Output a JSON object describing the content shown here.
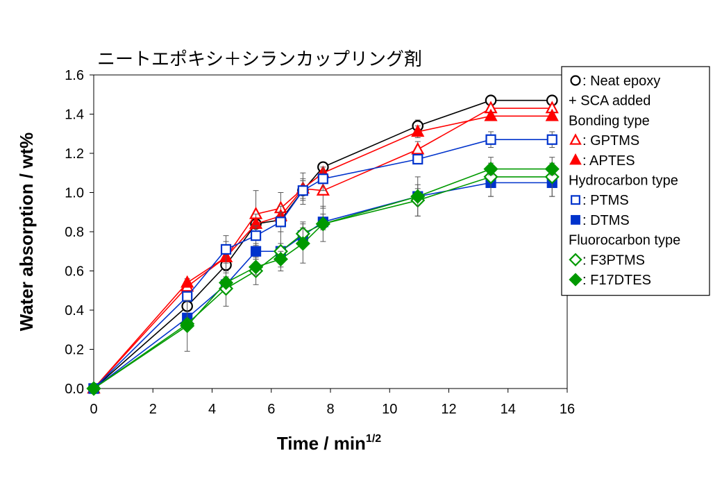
{
  "chart_data": {
    "type": "line",
    "title": "ニートエポキシ＋シランカップリング剤",
    "xlabel": "Time / min",
    "xlabel_sup": "1/2",
    "ylabel": "Water absorption / wt%",
    "xlim": [
      0,
      16
    ],
    "ylim": [
      0,
      1.6
    ],
    "xticks": [
      0,
      2,
      4,
      6,
      8,
      10,
      12,
      14,
      16
    ],
    "yticks": [
      0.0,
      0.2,
      0.4,
      0.6,
      0.8,
      1.0,
      1.2,
      1.4,
      1.6
    ],
    "ytick_labels": [
      "0.0",
      "0.2",
      "0.4",
      "0.6",
      "0.8",
      "1.0",
      "1.2",
      "1.4",
      "1.6"
    ],
    "xtick_labels": [
      "0",
      "2",
      "4",
      "6",
      "8",
      "10",
      "12",
      "14",
      "16"
    ],
    "grid": false,
    "legend_position": "top-right",
    "x": [
      0,
      3.16,
      4.47,
      5.48,
      6.32,
      7.07,
      7.75,
      10.95,
      13.42,
      15.49
    ],
    "series": [
      {
        "name": "Neat epoxy",
        "marker": "circle",
        "filled": false,
        "color": "#000000",
        "values": [
          0,
          0.42,
          0.63,
          0.84,
          0.86,
          1.01,
          1.13,
          1.34,
          1.47,
          1.47
        ],
        "errors": [
          0,
          0,
          0,
          0,
          0,
          0,
          0,
          0.03,
          0,
          0
        ]
      },
      {
        "name": "GPTMS",
        "marker": "triangle",
        "filled": false,
        "color": "#ff0000",
        "values": [
          0,
          0.52,
          0.67,
          0.89,
          0.92,
          1.02,
          1.01,
          1.22,
          1.43,
          1.43
        ],
        "errors": [
          0,
          0,
          0.08,
          0.12,
          0.08,
          0.08,
          0.09,
          0.04,
          0.02,
          0.02
        ]
      },
      {
        "name": "APTES",
        "marker": "triangle",
        "filled": true,
        "color": "#ff0000",
        "values": [
          0,
          0.54,
          0.67,
          0.84,
          0.88,
          1.02,
          1.1,
          1.31,
          1.39,
          1.39
        ],
        "errors": [
          0,
          0.02,
          0,
          0.05,
          0.05,
          0.05,
          0,
          0.03,
          0.02,
          0.02
        ]
      },
      {
        "name": "PTMS",
        "marker": "square",
        "filled": false,
        "color": "#0033cc",
        "values": [
          0,
          0.47,
          0.71,
          0.78,
          0.85,
          1.01,
          1.07,
          1.17,
          1.27,
          1.27
        ],
        "errors": [
          0,
          0,
          0.07,
          0.05,
          0.05,
          0.05,
          0.06,
          0,
          0.04,
          0.04
        ]
      },
      {
        "name": "DTMS",
        "marker": "square",
        "filled": true,
        "color": "#0033cc",
        "values": [
          0,
          0.36,
          0.53,
          0.7,
          0.7,
          0.78,
          0.85,
          0.98,
          1.05,
          1.05
        ],
        "errors": [
          0,
          0,
          0.04,
          0.04,
          0.04,
          0.04,
          0.04,
          0.04,
          0.07,
          0.07
        ]
      },
      {
        "name": "F3PTMS",
        "marker": "diamond",
        "filled": false,
        "color": "#009900",
        "values": [
          0,
          0.33,
          0.51,
          0.6,
          0.7,
          0.79,
          0.84,
          0.96,
          1.08,
          1.08
        ],
        "errors": [
          0,
          0,
          0.09,
          0.07,
          0.1,
          0.06,
          0.09,
          0.08,
          0.1,
          0.1
        ]
      },
      {
        "name": "F17DTES",
        "marker": "diamond",
        "filled": true,
        "color": "#009900",
        "values": [
          0,
          0.32,
          0.54,
          0.62,
          0.66,
          0.74,
          0.84,
          0.98,
          1.12,
          1.12
        ],
        "errors": [
          0,
          0.13,
          0,
          0.04,
          0.04,
          0.1,
          0,
          0.1,
          0.03,
          0.03
        ]
      }
    ]
  },
  "legend": {
    "items": [
      {
        "kind": "marker",
        "series": 0,
        "label": ": Neat epoxy"
      },
      {
        "kind": "text",
        "label": "+ SCA added"
      },
      {
        "kind": "text",
        "label": "Bonding type"
      },
      {
        "kind": "marker",
        "series": 1,
        "label": ": GPTMS"
      },
      {
        "kind": "marker",
        "series": 2,
        "label": ": APTES"
      },
      {
        "kind": "text",
        "label": "Hydrocarbon type"
      },
      {
        "kind": "marker",
        "series": 3,
        "label": ": PTMS"
      },
      {
        "kind": "marker",
        "series": 4,
        "label": ": DTMS"
      },
      {
        "kind": "text",
        "label": "Fluorocarbon type"
      },
      {
        "kind": "marker",
        "series": 5,
        "label": ": F3PTMS"
      },
      {
        "kind": "marker",
        "series": 6,
        "label": ": F17DTES"
      }
    ]
  }
}
